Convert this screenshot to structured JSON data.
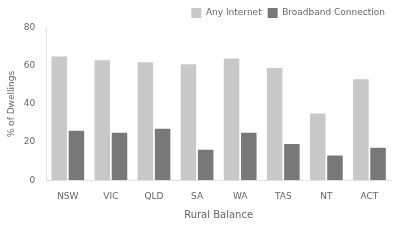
{
  "chart_data": {
    "type": "bar",
    "categories": [
      "NSW",
      "VIC",
      "QLD",
      "SA",
      "WA",
      "TAS",
      "NT",
      "ACT"
    ],
    "series": [
      {
        "name": "Any Internet",
        "color": "#c8c8c8",
        "values": [
          65,
          63,
          62,
          61,
          64,
          59,
          35,
          53
        ]
      },
      {
        "name": "Broadband Connection",
        "color": "#787878",
        "values": [
          26,
          25,
          27,
          16,
          25,
          19,
          13,
          17
        ]
      }
    ],
    "xlabel": "Rural Balance",
    "ylabel": "% of Dwellings",
    "ylim": [
      0,
      80
    ],
    "yticks": [
      0,
      20,
      40,
      60,
      80
    ],
    "grid": false,
    "legend": "upper right"
  }
}
